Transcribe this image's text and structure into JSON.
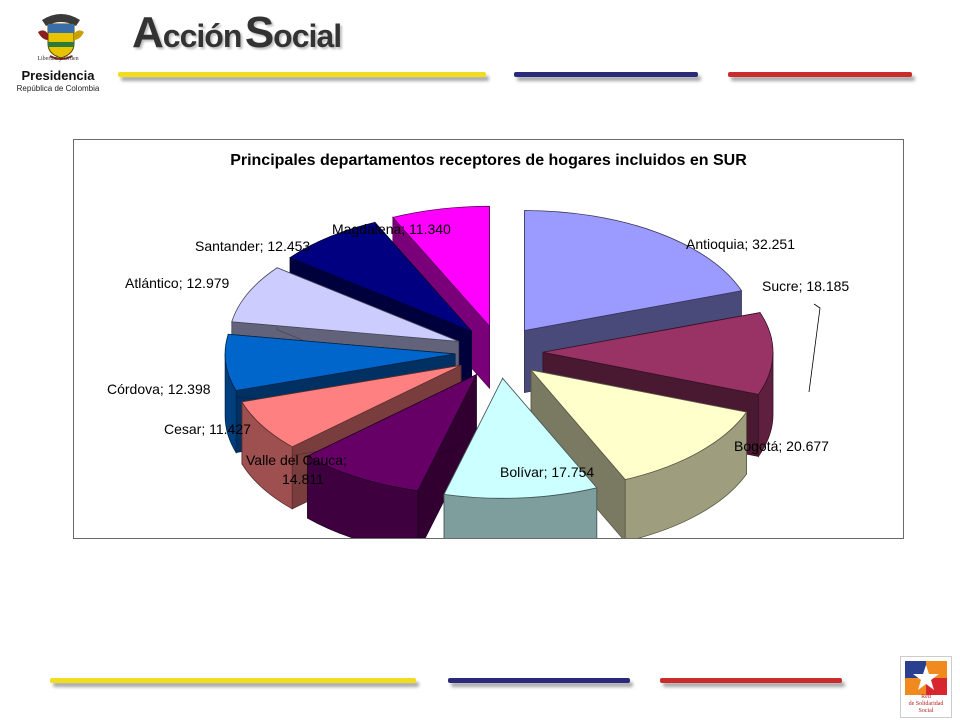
{
  "header": {
    "seal_motto": "Libertad y Orden",
    "presidency_title": "Presidencia",
    "presidency_subtitle": "República de Colombia",
    "brand_a": "A",
    "brand_ccion": "cción",
    "brand_s": "S",
    "brand_ocial": "ocial"
  },
  "stripe_colors": {
    "yellow": "#f2dc1e",
    "blue": "#2b2a78",
    "red": "#c92c2c"
  },
  "footer_logo": {
    "line1": "Red",
    "line2": "de Solidaridad",
    "line3": "Social"
  },
  "chart_data": {
    "type": "pie",
    "title": "Principales departamentos receptores de hogares incluidos en SUR",
    "exploded": true,
    "three_d": true,
    "slices": [
      {
        "label": "Antioquia; 32.251",
        "name": "Antioquia",
        "value": 32251,
        "color": "#9a9aff"
      },
      {
        "label": "Sucre; 18.185",
        "name": "Sucre",
        "value": 18185,
        "color": "#993366"
      },
      {
        "label": "Bogotá; 20.677",
        "name": "Bogotá",
        "value": 20677,
        "color": "#ffffcc"
      },
      {
        "label": "Bolívar; 17.754",
        "name": "Bolívar",
        "value": 17754,
        "color": "#ccffff"
      },
      {
        "label": "Valle del Cauca; 14.811",
        "name": "Valle del Cauca",
        "value": 14811,
        "color": "#660066"
      },
      {
        "label": "Cesar; 11.427",
        "name": "Cesar",
        "value": 11427,
        "color": "#ff8080"
      },
      {
        "label": "Córdova; 12.398",
        "name": "Córdova",
        "value": 12398,
        "color": "#0066cc"
      },
      {
        "label": "Atlántico; 12.979",
        "name": "Atlántico",
        "value": 12979,
        "color": "#ccccff"
      },
      {
        "label": "Santander; 12.453",
        "name": "Santander",
        "value": 12453,
        "color": "#000080"
      },
      {
        "label": "Magdalena; 11.340",
        "name": "Magdalena",
        "value": 11340,
        "color": "#ff00ff"
      }
    ]
  }
}
